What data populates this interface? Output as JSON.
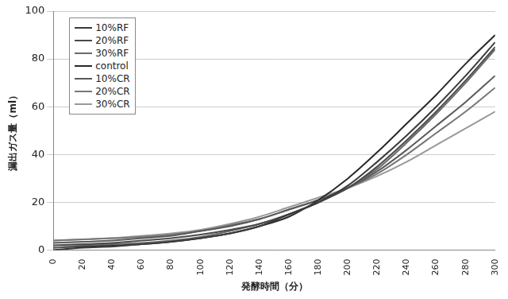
{
  "chart_data": {
    "type": "line",
    "x_label": "発酵時間（分）",
    "y_label": "漏出ガス量（ml）",
    "x": [
      0,
      20,
      40,
      60,
      80,
      100,
      120,
      140,
      160,
      180,
      200,
      220,
      240,
      260,
      280,
      300
    ],
    "series": [
      {
        "name": "10%RF",
        "color": "#3a3a3a",
        "values": [
          0,
          1,
          1.5,
          2.5,
          3.5,
          5,
          7,
          10,
          15,
          20,
          27,
          37,
          48,
          60,
          73,
          87
        ]
      },
      {
        "name": "20%RF",
        "color": "#4a4a4a",
        "values": [
          2,
          2.5,
          3,
          4,
          5,
          6.5,
          8.5,
          11,
          15,
          20,
          26,
          35,
          46,
          58,
          71,
          85
        ]
      },
      {
        "name": "30%RF",
        "color": "#6a6a6a",
        "values": [
          1,
          2,
          2.5,
          3,
          4,
          5.5,
          8,
          11,
          15,
          20,
          26,
          34,
          45,
          57,
          70,
          84
        ]
      },
      {
        "name": "control",
        "color": "#2a2a2a",
        "values": [
          1,
          1.5,
          2,
          2.5,
          3.5,
          5,
          7,
          10,
          14,
          21,
          30,
          41,
          53,
          65,
          78,
          90
        ]
      },
      {
        "name": "10%CR",
        "color": "#5a5a5a",
        "values": [
          3,
          3.5,
          4,
          5,
          6,
          8,
          10,
          13,
          17,
          21,
          26,
          33,
          42,
          52,
          62,
          73
        ]
      },
      {
        "name": "20%CR",
        "color": "#777777",
        "values": [
          4,
          4.5,
          5,
          5.5,
          6.5,
          8,
          10.5,
          13,
          17,
          21,
          26,
          32,
          40,
          49,
          58,
          68
        ]
      },
      {
        "name": "30%CR",
        "color": "#999999",
        "values": [
          4,
          4.5,
          5,
          6,
          7,
          8.5,
          11,
          14,
          18,
          22,
          26,
          31,
          37,
          44,
          51,
          58
        ]
      }
    ],
    "xlim": [
      0,
      300
    ],
    "xticks": [
      0,
      20,
      40,
      60,
      80,
      100,
      120,
      140,
      160,
      180,
      200,
      220,
      240,
      260,
      280,
      300
    ],
    "ylim": [
      0,
      100
    ],
    "yticks": [
      0,
      20,
      40,
      60,
      80,
      100
    ],
    "grid": true,
    "legend": "upper left"
  }
}
